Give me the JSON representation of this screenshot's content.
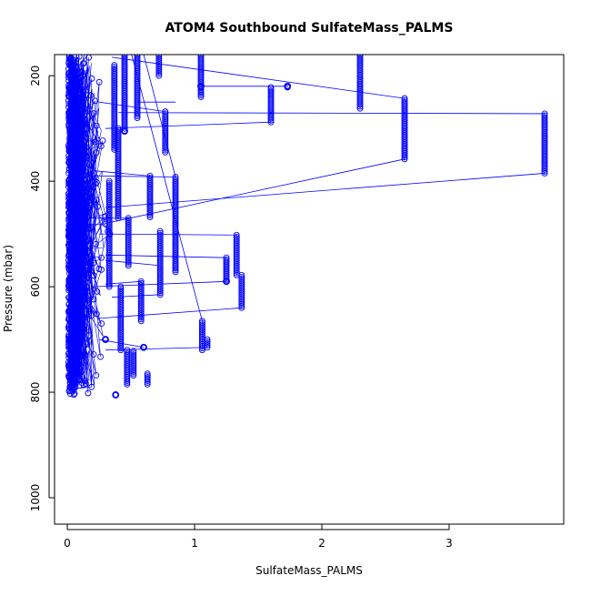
{
  "chart_data": {
    "type": "scatter",
    "title": "ATOM4 Southbound SulfateMass_PALMS",
    "xlabel": "SulfateMass_PALMS",
    "ylabel": "Pressure (mbar)",
    "xlim": [
      -0.1,
      3.9
    ],
    "ylim": [
      1050,
      160
    ],
    "y_reversed": true,
    "grid": false,
    "legend": "none",
    "marker": "open-circle",
    "connected": true,
    "colors": {
      "series": "#0000ff",
      "axes": "#000000"
    },
    "x_ticks": [
      {
        "value": 0,
        "label": "0"
      },
      {
        "value": 1,
        "label": "1"
      },
      {
        "value": 2,
        "label": "2"
      },
      {
        "value": 3,
        "label": "3"
      }
    ],
    "y_ticks": [
      {
        "value": 200,
        "label": "200"
      },
      {
        "value": 400,
        "label": "400"
      },
      {
        "value": 600,
        "label": "600"
      },
      {
        "value": 800,
        "label": "800"
      },
      {
        "value": 1000,
        "label": "1000"
      }
    ],
    "dense_region": {
      "x_range": [
        0.0,
        0.35
      ],
      "p_range": [
        160,
        805
      ]
    },
    "columns": [
      {
        "x": 2.3,
        "p_top": 160,
        "p_bottom": 262
      },
      {
        "x": 1.6,
        "p_top": 222,
        "p_bottom": 288
      },
      {
        "x": 1.73,
        "p_top": 220,
        "p_bottom": 222
      },
      {
        "x": 1.05,
        "p_top": 160,
        "p_bottom": 240
      },
      {
        "x": 0.72,
        "p_top": 160,
        "p_bottom": 200
      },
      {
        "x": 2.65,
        "p_top": 243,
        "p_bottom": 358
      },
      {
        "x": 3.75,
        "p_top": 272,
        "p_bottom": 385
      },
      {
        "x": 0.77,
        "p_top": 268,
        "p_bottom": 345
      },
      {
        "x": 0.85,
        "p_top": 392,
        "p_bottom": 572
      },
      {
        "x": 0.65,
        "p_top": 390,
        "p_bottom": 468
      },
      {
        "x": 1.33,
        "p_top": 502,
        "p_bottom": 578
      },
      {
        "x": 1.25,
        "p_top": 545,
        "p_bottom": 590
      },
      {
        "x": 1.37,
        "p_top": 578,
        "p_bottom": 640
      },
      {
        "x": 0.73,
        "p_top": 495,
        "p_bottom": 615
      },
      {
        "x": 0.58,
        "p_top": 590,
        "p_bottom": 665
      },
      {
        "x": 0.48,
        "p_top": 470,
        "p_bottom": 560
      },
      {
        "x": 1.06,
        "p_top": 665,
        "p_bottom": 720
      },
      {
        "x": 1.1,
        "p_top": 700,
        "p_bottom": 715
      },
      {
        "x": 0.47,
        "p_top": 720,
        "p_bottom": 785
      },
      {
        "x": 0.52,
        "p_top": 722,
        "p_bottom": 768
      },
      {
        "x": 0.63,
        "p_top": 765,
        "p_bottom": 785
      },
      {
        "x": 0.37,
        "p_top": 180,
        "p_bottom": 340
      },
      {
        "x": 0.45,
        "p_top": 160,
        "p_bottom": 300
      },
      {
        "x": 0.55,
        "p_top": 160,
        "p_bottom": 280
      },
      {
        "x": 0.4,
        "p_top": 300,
        "p_bottom": 470
      },
      {
        "x": 0.33,
        "p_top": 400,
        "p_bottom": 600
      },
      {
        "x": 0.42,
        "p_top": 600,
        "p_bottom": 720
      }
    ],
    "isolated_points": [
      {
        "x": 1.73,
        "p": 220
      },
      {
        "x": 0.38,
        "p": 805
      },
      {
        "x": 0.6,
        "p": 715
      },
      {
        "x": 0.3,
        "p": 700
      },
      {
        "x": 1.05,
        "p": 220
      },
      {
        "x": 0.45,
        "p": 305
      },
      {
        "x": 1.25,
        "p": 590
      }
    ],
    "connectors": [
      {
        "from": [
          1.05,
          220
        ],
        "to": [
          1.73,
          220
        ]
      },
      {
        "from": [
          0.35,
          165
        ],
        "to": [
          2.65,
          243
        ]
      },
      {
        "from": [
          0.3,
          300
        ],
        "to": [
          1.6,
          288
        ]
      },
      {
        "from": [
          0.4,
          270
        ],
        "to": [
          3.75,
          272
        ]
      },
      {
        "from": [
          0.3,
          480
        ],
        "to": [
          2.65,
          358
        ]
      },
      {
        "from": [
          0.3,
          450
        ],
        "to": [
          3.75,
          385
        ]
      },
      {
        "from": [
          0.25,
          500
        ],
        "to": [
          1.33,
          502
        ]
      },
      {
        "from": [
          0.3,
          540
        ],
        "to": [
          1.25,
          545
        ]
      },
      {
        "from": [
          0.2,
          600
        ],
        "to": [
          1.25,
          590
        ]
      },
      {
        "from": [
          0.25,
          660
        ],
        "to": [
          1.37,
          640
        ]
      },
      {
        "from": [
          0.3,
          720
        ],
        "to": [
          1.1,
          715
        ]
      },
      {
        "from": [
          0.35,
          620
        ],
        "to": [
          0.73,
          615
        ]
      },
      {
        "from": [
          0.5,
          155
        ],
        "to": [
          1.06,
          665
        ]
      },
      {
        "from": [
          0.6,
          160
        ],
        "to": [
          0.85,
          392
        ]
      },
      {
        "from": [
          0.25,
          250
        ],
        "to": [
          0.77,
          268
        ]
      },
      {
        "from": [
          0.2,
          390
        ],
        "to": [
          0.85,
          392
        ]
      },
      {
        "from": [
          0.3,
          550
        ],
        "to": [
          0.73,
          560
        ]
      },
      {
        "from": [
          0.2,
          380
        ],
        "to": [
          0.65,
          390
        ]
      },
      {
        "from": [
          0.55,
          250
        ],
        "to": [
          0.85,
          250
        ]
      },
      {
        "from": [
          0.25,
          700
        ],
        "to": [
          0.6,
          715
        ]
      },
      {
        "from": [
          0.3,
          595
        ],
        "to": [
          0.58,
          590
        ]
      },
      {
        "from": [
          0.2,
          470
        ],
        "to": [
          0.48,
          470
        ]
      }
    ]
  }
}
